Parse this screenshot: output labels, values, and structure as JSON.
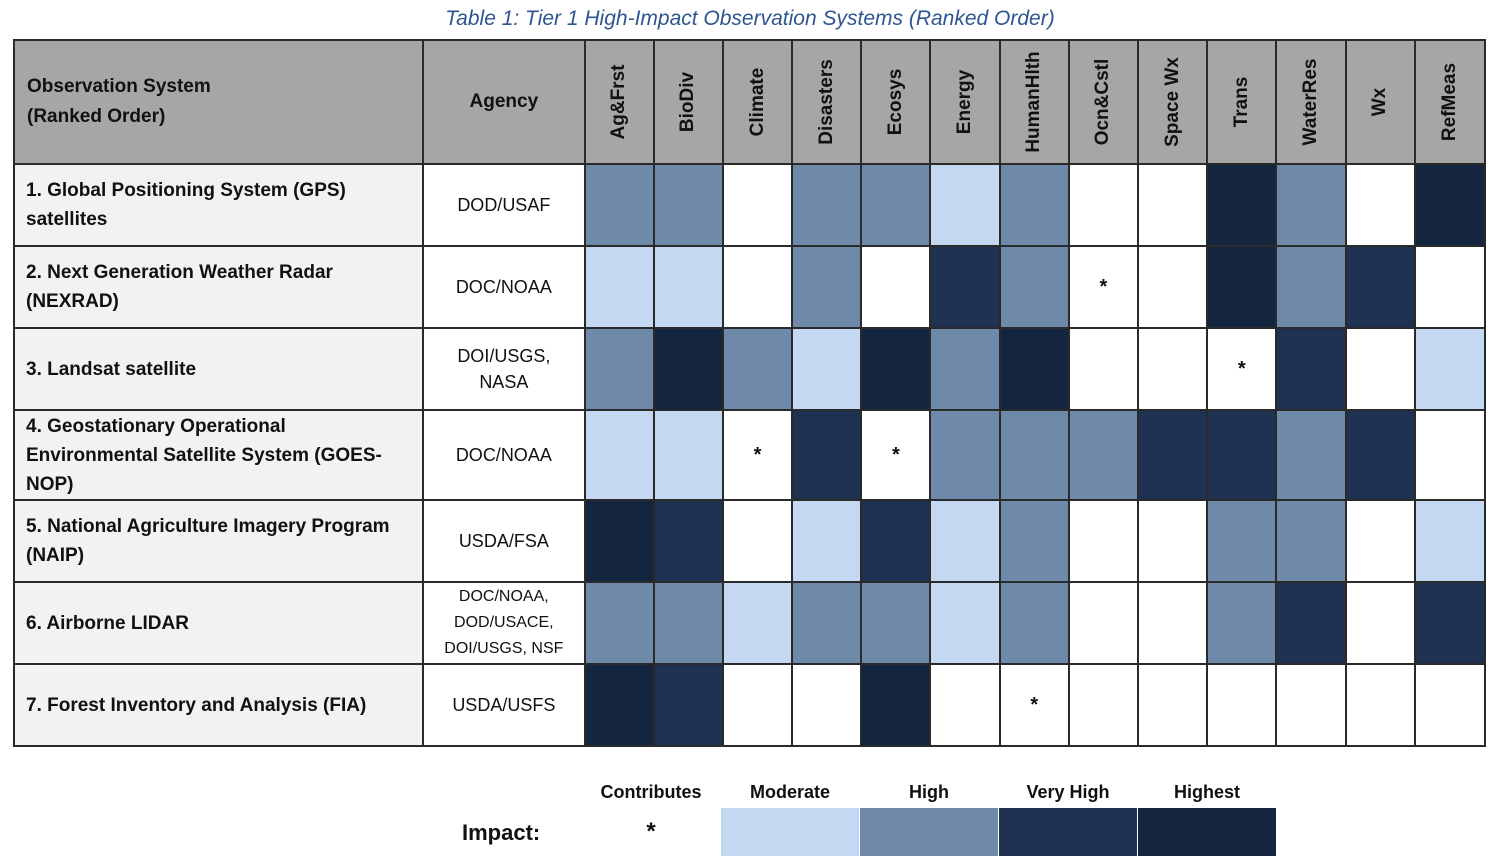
{
  "caption": "Table 1: Tier 1 High-Impact Observation Systems (Ranked Order)",
  "header": {
    "system_line1": "Observation System",
    "system_line2": "(Ranked Order)",
    "agency": "Agency",
    "columns": [
      "Ag&Frst",
      "BioDiv",
      "Climate",
      "Disasters",
      "Ecosys",
      "Energy",
      "HumanHlth",
      "Ocn&Cstl",
      "Space Wx",
      "Trans",
      "WaterRes",
      "Wx",
      "RefMeas"
    ]
  },
  "rows": [
    {
      "name_lines": [
        "1. Global Positioning System (GPS)",
        "satellites"
      ],
      "agency_lines": [
        "DOD/USAF"
      ],
      "levels": [
        3,
        3,
        0,
        3,
        3,
        2,
        3,
        0,
        0,
        5,
        3,
        0,
        5
      ]
    },
    {
      "name_lines": [
        "2. Next Generation Weather Radar",
        "(NEXRAD)"
      ],
      "agency_lines": [
        "DOC/NOAA"
      ],
      "levels": [
        2,
        2,
        0,
        3,
        0,
        4,
        3,
        1,
        0,
        5,
        3,
        4,
        0
      ]
    },
    {
      "name_lines": [
        "3. Landsat satellite"
      ],
      "agency_lines": [
        "DOI/USGS,",
        "NASA"
      ],
      "levels": [
        3,
        5,
        3,
        2,
        5,
        3,
        5,
        0,
        0,
        1,
        4,
        0,
        2
      ]
    },
    {
      "name_lines": [
        "4. Geostationary Operational",
        "Environmental Satellite System (GOES-",
        "NOP)"
      ],
      "agency_lines": [
        "DOC/NOAA"
      ],
      "levels": [
        2,
        2,
        1,
        4,
        1,
        3,
        3,
        3,
        4,
        4,
        3,
        4,
        0
      ]
    },
    {
      "name_lines": [
        "5. National Agriculture Imagery Program",
        "(NAIP)"
      ],
      "agency_lines": [
        "USDA/FSA"
      ],
      "levels": [
        5,
        4,
        0,
        2,
        4,
        2,
        3,
        0,
        0,
        3,
        3,
        0,
        2
      ]
    },
    {
      "name_lines": [
        "6. Airborne LIDAR"
      ],
      "agency_lines": [
        "DOC/NOAA,",
        "DOD/USACE,",
        "DOI/USGS, NSF"
      ],
      "levels": [
        3,
        3,
        2,
        3,
        3,
        2,
        3,
        0,
        0,
        3,
        4,
        0,
        4
      ]
    },
    {
      "name_lines": [
        "7. Forest Inventory and Analysis (FIA)"
      ],
      "agency_lines": [
        "USDA/USFS"
      ],
      "levels": [
        5,
        4,
        0,
        0,
        5,
        0,
        1,
        0,
        0,
        0,
        0,
        0,
        0
      ]
    }
  ],
  "contributes_symbol": "*",
  "legend": {
    "title": "Impact:",
    "items": [
      {
        "label": "Contributes",
        "symbol": "*",
        "level": 1
      },
      {
        "label": "Moderate",
        "symbol": "",
        "level": 2
      },
      {
        "label": "High",
        "symbol": "",
        "level": 3
      },
      {
        "label": "Very High",
        "symbol": "",
        "level": 4
      },
      {
        "label": "Highest",
        "symbol": "",
        "level": 5
      }
    ]
  },
  "colors": {
    "caption": "#2e5591",
    "header_bg": "#a6a6a6",
    "name_bg": "#f2f2f2",
    "moderate": "#c5d8f1",
    "high": "#6f89aa",
    "very_high": "#1f3251",
    "highest": "#142540"
  }
}
